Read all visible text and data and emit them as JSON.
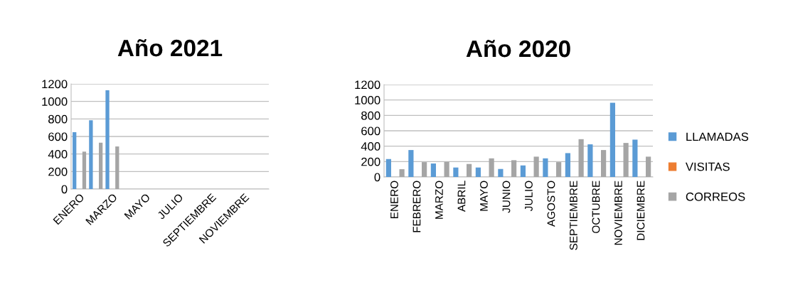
{
  "chart_data": [
    {
      "type": "bar",
      "title": "Año 2021",
      "categories": [
        "ENERO",
        null,
        "MARZO",
        null,
        "MAYO",
        null,
        "JULIO",
        null,
        "SEPTIEMBRE",
        null,
        "NOVIEMBRE",
        null
      ],
      "series": [
        {
          "color": "#5b9bd5",
          "values": [
            649,
            785,
            1127,
            null,
            null,
            null,
            null,
            null,
            null,
            null,
            null,
            null
          ]
        },
        {
          "color": "#ed7d31",
          "values": [
            null,
            null,
            null,
            null,
            null,
            null,
            null,
            null,
            null,
            null,
            null,
            null
          ]
        },
        {
          "color": "#a5a5a5",
          "values": [
            427,
            529,
            486,
            null,
            null,
            null,
            null,
            null,
            null,
            null,
            null,
            null
          ]
        }
      ],
      "ylim": [
        0,
        1200
      ],
      "yticks": [
        0,
        200,
        400,
        600,
        800,
        1000,
        1200
      ],
      "grid": "y",
      "legend": false
    },
    {
      "type": "bar",
      "title": "Año 2020",
      "categories": [
        "ENERO",
        "FEBRERO",
        "MARZO",
        "ABRIL",
        "MAYO",
        "JUNIO",
        "JULIO",
        "AGOSTO",
        "SEPTIEMBRE",
        "OCTUBRE",
        "NOVIEMBRE",
        "DICIEMBRE"
      ],
      "series": [
        {
          "name": "LLAMADAS",
          "color": "#5b9bd5",
          "values": [
            233,
            350,
            175,
            123,
            123,
            104,
            150,
            242,
            310,
            424,
            964,
            485
          ]
        },
        {
          "name": "VISITAS",
          "color": "#ed7d31",
          "values": [
            null,
            null,
            null,
            null,
            null,
            null,
            null,
            null,
            null,
            null,
            null,
            null
          ]
        },
        {
          "name": "CORREOS",
          "color": "#a5a5a5",
          "values": [
            101,
            193,
            196,
            169,
            242,
            218,
            264,
            193,
            491,
            350,
            442,
            264
          ]
        }
      ],
      "ylim": [
        0,
        1200
      ],
      "yticks": [
        0,
        200,
        400,
        600,
        800,
        1000,
        1200
      ],
      "grid": "y",
      "legend": "right"
    }
  ]
}
